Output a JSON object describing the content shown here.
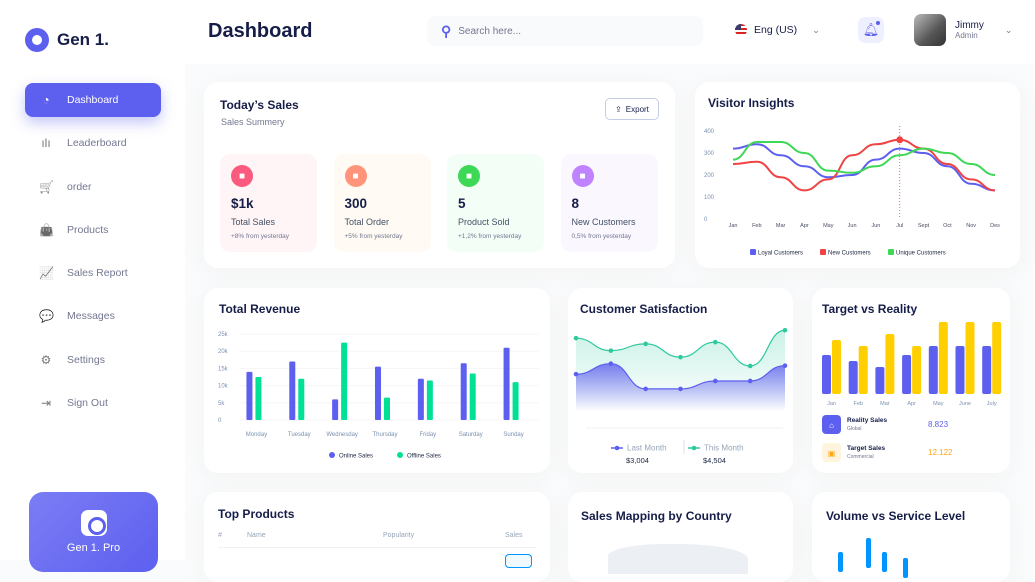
{
  "app": {
    "name": "Gen 1.",
    "pro_label": "Gen 1. Pro"
  },
  "sidebar": {
    "items": [
      {
        "label": "Dashboard",
        "icon": "pie-chart-icon",
        "glyph": "◔",
        "active": true
      },
      {
        "label": "Leaderboard",
        "icon": "bar-chart-icon",
        "glyph": "ılı"
      },
      {
        "label": "order",
        "icon": "cart-icon",
        "glyph": "🛒"
      },
      {
        "label": "Products",
        "icon": "bag-icon",
        "glyph": "👜"
      },
      {
        "label": "Sales Report",
        "icon": "line-chart-icon",
        "glyph": "📈"
      },
      {
        "label": "Messages",
        "icon": "message-icon",
        "glyph": "💬"
      },
      {
        "label": "Settings",
        "icon": "gear-icon",
        "glyph": "⚙"
      },
      {
        "label": "Sign Out",
        "icon": "sign-out-icon",
        "glyph": "⇥"
      }
    ]
  },
  "header": {
    "title": "Dashboard",
    "search_placeholder": "Search here...",
    "language": "Eng (US)",
    "user": {
      "name": "Jimmy",
      "role": "Admin"
    }
  },
  "todays_sales": {
    "title": "Today’s Sales",
    "subtitle": "Sales Summery",
    "export_label": "Export",
    "stats": [
      {
        "value": "$1k",
        "label": "Total Sales",
        "delta": "+8% from yesterday",
        "color": "#fa5a7d",
        "bg": "#ffe2e5"
      },
      {
        "value": "300",
        "label": "Total Order",
        "delta": "+5% from yesterday",
        "color": "#ff947a",
        "bg": "#fff4de"
      },
      {
        "value": "5",
        "label": "Product Sold",
        "delta": "+1,2% from yesterday",
        "color": "#3cd856",
        "bg": "#dcfce7"
      },
      {
        "value": "8",
        "label": "New Customers",
        "delta": "0,5% from yesterday",
        "color": "#bf83ff",
        "bg": "#f3e8ff"
      }
    ]
  },
  "chart_data": [
    {
      "id": "visitor",
      "type": "line",
      "title": "Visitor Insights",
      "ylim": [
        0,
        400
      ],
      "yticks": [
        "0",
        "100",
        "200",
        "300",
        "400"
      ],
      "x": [
        "Jan",
        "Feb",
        "Mar",
        "Apr",
        "May",
        "Jun",
        "Jun",
        "Jul",
        "Sept",
        "Oct",
        "Nov",
        "Des"
      ],
      "series": [
        {
          "name": "Loyal Customers",
          "color": "#5d5fef",
          "values": [
            320,
            340,
            290,
            240,
            190,
            200,
            270,
            320,
            300,
            240,
            160,
            130
          ]
        },
        {
          "name": "New Customers",
          "color": "#ef4444",
          "values": [
            250,
            260,
            190,
            130,
            180,
            290,
            340,
            360,
            320,
            250,
            180,
            130
          ]
        },
        {
          "name": "Unique Customers",
          "color": "#3cd856",
          "values": [
            270,
            350,
            350,
            300,
            220,
            210,
            240,
            290,
            320,
            300,
            250,
            200
          ]
        }
      ],
      "highlight": {
        "index": 7,
        "series": "New Customers"
      }
    },
    {
      "id": "revenue",
      "type": "bar",
      "title": "Total Revenue",
      "ylim": [
        0,
        25000
      ],
      "yticks": [
        "0",
        "5k",
        "10k",
        "15k",
        "20k",
        "25k"
      ],
      "categories": [
        "Monday",
        "Tuesday",
        "Wednesday",
        "Thursday",
        "Friday",
        "Saturday",
        "Sunday"
      ],
      "series": [
        {
          "name": "Online Sales",
          "color": "#5d5fef",
          "values": [
            14000,
            17000,
            6000,
            15500,
            12000,
            16500,
            21000
          ]
        },
        {
          "name": "Offline Sales",
          "color": "#00e096",
          "values": [
            12500,
            12000,
            22500,
            6500,
            11500,
            13500,
            11000
          ]
        }
      ]
    },
    {
      "id": "satisfaction",
      "type": "area",
      "title": "Customer Satisfaction",
      "ylim": [
        0,
        3
      ],
      "series": [
        {
          "name": "Last Month",
          "color": "#5d5fef",
          "total": "$3,004",
          "values": [
            1.3,
            1.67,
            0.78,
            0.78,
            1.06,
            1.06,
            1.6
          ]
        },
        {
          "name": "This Month",
          "color": "#2ec99e",
          "total": "$4,504",
          "values": [
            2.57,
            2.13,
            2.37,
            1.9,
            2.43,
            1.59,
            2.85
          ]
        }
      ]
    },
    {
      "id": "target",
      "type": "bar",
      "title": "Target vs Reality",
      "ylim": [
        0,
        12
      ],
      "categories": [
        "Jan",
        "Feb",
        "Mar",
        "Apr",
        "May",
        "June",
        "July"
      ],
      "series": [
        {
          "name": "Reality Sales",
          "color": "#4ab58e",
          "values": [
            6.5,
            5.5,
            4.5,
            6.5,
            8,
            8,
            8
          ]
        },
        {
          "name": "Target Sales",
          "color": "#ffcf00",
          "values": [
            9,
            8,
            10,
            8,
            12,
            12,
            12
          ]
        }
      ]
    }
  ],
  "target_summary": [
    {
      "label": "Reality Sales",
      "sub": "Global",
      "value": "8.823",
      "color": "#4ab58e"
    },
    {
      "label": "Target Sales",
      "sub": "Commercial",
      "value": "12.122",
      "color": "#ffa412"
    }
  ],
  "top_products": {
    "title": "Top Products",
    "columns": [
      "#",
      "Name",
      "Popularity",
      "Sales"
    ]
  },
  "sales_mapping": {
    "title": "Sales Mapping by Country"
  },
  "volume_service": {
    "title": "Volume vs Service Level"
  }
}
